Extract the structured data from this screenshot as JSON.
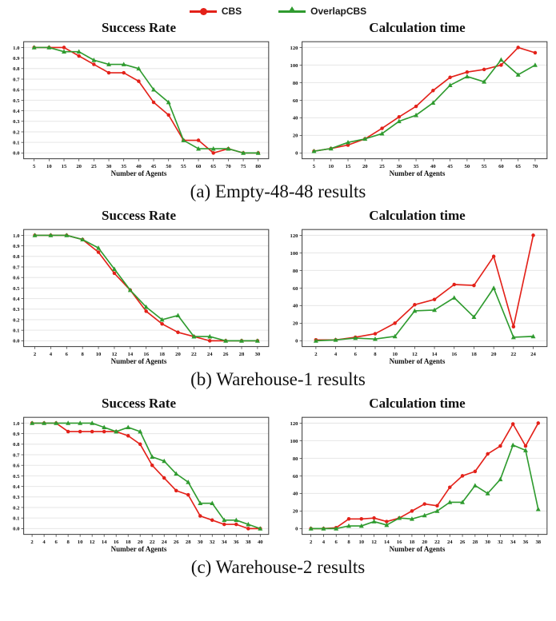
{
  "legend": {
    "position": "top-center",
    "items": [
      {
        "label": "CBS",
        "color": "#e32119",
        "marker": "circle"
      },
      {
        "label": "OverlapCBS",
        "color": "#2f9b2f",
        "marker": "triangle"
      }
    ]
  },
  "captions": [
    "(a) Empty-48-48 results",
    "(b) Warehouse-1 results",
    "(c) Warehouse-2 results"
  ],
  "colors": {
    "cbs": "#e32119",
    "overlapcbs": "#2f9b2f",
    "gridline": "#e6e6e6",
    "frame": "#3c3c3c",
    "tick": "#333333"
  },
  "chart_data": [
    {
      "type": "line",
      "group": "Empty-48-48",
      "title": "Success Rate",
      "xlabel": "Number of Agents",
      "grid": "horizontal",
      "x": [
        5,
        10,
        15,
        20,
        25,
        30,
        35,
        40,
        45,
        50,
        55,
        60,
        65,
        70,
        75,
        80
      ],
      "ylim": [
        0,
        1.0
      ],
      "yticks": [
        0,
        0.1,
        0.2,
        0.3,
        0.4,
        0.5,
        0.6,
        0.7,
        0.8,
        0.9,
        1.0
      ],
      "ytick_labels": [
        "0.0",
        "0.1",
        "0.2",
        "0.3",
        "0.4",
        "0.5",
        "0.6",
        "0.7",
        "0.8",
        "0.9",
        "1.0"
      ],
      "series": [
        {
          "name": "CBS",
          "color": "#e32119",
          "marker": "circle",
          "values": [
            1.0,
            1.0,
            1.0,
            0.92,
            0.84,
            0.76,
            0.76,
            0.68,
            0.48,
            0.36,
            0.12,
            0.12,
            0.0,
            0.04,
            0.0,
            0.0
          ]
        },
        {
          "name": "OverlapCBS",
          "color": "#2f9b2f",
          "marker": "triangle",
          "values": [
            1.0,
            1.0,
            0.96,
            0.96,
            0.88,
            0.84,
            0.84,
            0.8,
            0.6,
            0.48,
            0.12,
            0.04,
            0.04,
            0.04,
            0.0,
            0.0
          ]
        }
      ]
    },
    {
      "type": "line",
      "group": "Empty-48-48",
      "title": "Calculation time",
      "xlabel": "Number of Agents",
      "grid": "horizontal",
      "x": [
        5,
        10,
        15,
        20,
        25,
        30,
        35,
        40,
        45,
        50,
        55,
        60,
        65,
        70
      ],
      "ylim": [
        0,
        120
      ],
      "yticks": [
        0,
        20,
        40,
        60,
        80,
        100,
        120
      ],
      "ytick_labels": [
        "0",
        "20",
        "40",
        "60",
        "80",
        "100",
        "120"
      ],
      "series": [
        {
          "name": "CBS",
          "color": "#e32119",
          "marker": "circle",
          "values": [
            2,
            5,
            9,
            16,
            28,
            41,
            53,
            71,
            86,
            92,
            95,
            100,
            120,
            114
          ]
        },
        {
          "name": "OverlapCBS",
          "color": "#2f9b2f",
          "marker": "triangle",
          "values": [
            2,
            5,
            12,
            16,
            22,
            36,
            43,
            57,
            77,
            87,
            81,
            106,
            89,
            100
          ]
        }
      ]
    },
    {
      "type": "line",
      "group": "Warehouse-1",
      "title": "Success Rate",
      "xlabel": "Number of Agents",
      "grid": "horizontal",
      "x": [
        2,
        4,
        6,
        8,
        10,
        12,
        14,
        16,
        18,
        20,
        22,
        24,
        26,
        28,
        30
      ],
      "ylim": [
        0,
        1.0
      ],
      "yticks": [
        0,
        0.1,
        0.2,
        0.3,
        0.4,
        0.5,
        0.6,
        0.7,
        0.8,
        0.9,
        1.0
      ],
      "ytick_labels": [
        "0.0",
        "0.1",
        "0.2",
        "0.3",
        "0.4",
        "0.5",
        "0.6",
        "0.7",
        "0.8",
        "0.9",
        "1.0"
      ],
      "series": [
        {
          "name": "CBS",
          "color": "#e32119",
          "marker": "circle",
          "values": [
            1.0,
            1.0,
            1.0,
            0.96,
            0.84,
            0.64,
            0.48,
            0.28,
            0.16,
            0.08,
            0.04,
            0.0,
            0.0,
            0.0,
            0.0
          ]
        },
        {
          "name": "OverlapCBS",
          "color": "#2f9b2f",
          "marker": "triangle",
          "values": [
            1.0,
            1.0,
            1.0,
            0.96,
            0.88,
            0.68,
            0.48,
            0.32,
            0.2,
            0.24,
            0.04,
            0.04,
            0.0,
            0.0,
            0.0
          ]
        }
      ]
    },
    {
      "type": "line",
      "group": "Warehouse-1",
      "title": "Calculation time",
      "xlabel": "Number of Agents",
      "grid": "horizontal",
      "x": [
        2,
        4,
        6,
        8,
        10,
        12,
        14,
        16,
        18,
        20,
        22,
        24
      ],
      "ylim": [
        0,
        120
      ],
      "yticks": [
        0,
        20,
        40,
        60,
        80,
        100,
        120
      ],
      "ytick_labels": [
        "0",
        "20",
        "40",
        "60",
        "80",
        "100",
        "120"
      ],
      "series": [
        {
          "name": "CBS",
          "color": "#e32119",
          "marker": "circle",
          "values": [
            1,
            1,
            4,
            8,
            20,
            41,
            47,
            64,
            63,
            96,
            16,
            120
          ]
        },
        {
          "name": "OverlapCBS",
          "color": "#2f9b2f",
          "marker": "triangle",
          "values": [
            0,
            1,
            3,
            2,
            5,
            34,
            35,
            49,
            27,
            60,
            4,
            5
          ]
        }
      ]
    },
    {
      "type": "line",
      "group": "Warehouse-2",
      "title": "Success Rate",
      "xlabel": "Number of Agents",
      "grid": "horizontal",
      "x": [
        2,
        4,
        6,
        8,
        10,
        12,
        14,
        16,
        18,
        20,
        22,
        24,
        26,
        28,
        30,
        32,
        34,
        36,
        38,
        40
      ],
      "ylim": [
        0,
        1.0
      ],
      "yticks": [
        0,
        0.1,
        0.2,
        0.3,
        0.4,
        0.5,
        0.6,
        0.7,
        0.8,
        0.9,
        1.0
      ],
      "ytick_labels": [
        "0.0",
        "0.1",
        "0.2",
        "0.3",
        "0.4",
        "0.5",
        "0.6",
        "0.7",
        "0.8",
        "0.9",
        "1.0"
      ],
      "series": [
        {
          "name": "CBS",
          "color": "#e32119",
          "marker": "circle",
          "values": [
            1.0,
            1.0,
            1.0,
            0.92,
            0.92,
            0.92,
            0.92,
            0.92,
            0.88,
            0.8,
            0.6,
            0.48,
            0.36,
            0.32,
            0.12,
            0.08,
            0.04,
            0.04,
            0.0,
            0.0
          ]
        },
        {
          "name": "OverlapCBS",
          "color": "#2f9b2f",
          "marker": "triangle",
          "values": [
            1.0,
            1.0,
            1.0,
            1.0,
            1.0,
            1.0,
            0.96,
            0.92,
            0.96,
            0.92,
            0.68,
            0.64,
            0.52,
            0.44,
            0.24,
            0.24,
            0.08,
            0.08,
            0.04,
            0.0
          ]
        }
      ]
    },
    {
      "type": "line",
      "group": "Warehouse-2",
      "title": "Calculation time",
      "xlabel": "Number of Agents",
      "grid": "horizontal",
      "x": [
        2,
        4,
        6,
        8,
        10,
        12,
        14,
        16,
        18,
        20,
        22,
        24,
        26,
        28,
        30,
        32,
        34,
        36,
        38
      ],
      "ylim": [
        0,
        120
      ],
      "yticks": [
        0,
        20,
        40,
        60,
        80,
        100,
        120
      ],
      "ytick_labels": [
        "0",
        "20",
        "40",
        "60",
        "80",
        "100",
        "120"
      ],
      "series": [
        {
          "name": "CBS",
          "color": "#e32119",
          "marker": "circle",
          "values": [
            0,
            0,
            1,
            11,
            11,
            12,
            8,
            12,
            20,
            28,
            26,
            47,
            60,
            65,
            85,
            94,
            119,
            94,
            120
          ]
        },
        {
          "name": "OverlapCBS",
          "color": "#2f9b2f",
          "marker": "triangle",
          "values": [
            0,
            0,
            0,
            3,
            3,
            8,
            4,
            12,
            11,
            15,
            20,
            30,
            30,
            49,
            40,
            56,
            95,
            89,
            22
          ]
        }
      ]
    }
  ]
}
